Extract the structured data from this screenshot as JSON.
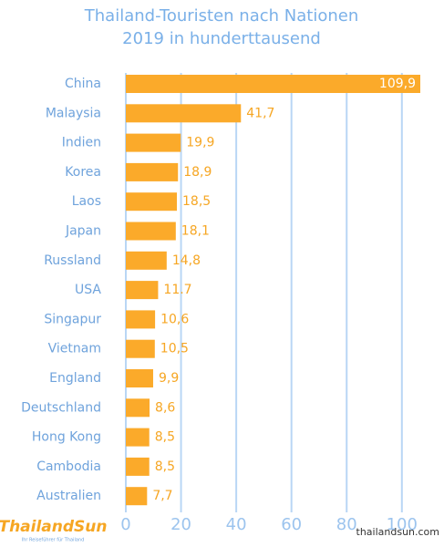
{
  "chart_data": {
    "type": "bar",
    "orientation": "horizontal",
    "title": "Thailand-Touristen nach Nationen",
    "subtitle": "2019 in hunderttausend",
    "categories": [
      "China",
      "Malaysia",
      "Indien",
      "Korea",
      "Laos",
      "Japan",
      "Russland",
      "USA",
      "Singapur",
      "Vietnam",
      "England",
      "Deutschland",
      "Hong Kong",
      "Cambodia",
      "Australien"
    ],
    "values": [
      109.9,
      41.7,
      19.9,
      18.9,
      18.5,
      18.1,
      14.8,
      11.7,
      10.6,
      10.5,
      9.9,
      8.6,
      8.5,
      8.5,
      7.7
    ],
    "value_labels": [
      "109,9",
      "41,7",
      "19,9",
      "18,9",
      "18,5",
      "18,1",
      "14,8",
      "11.7",
      "10,6",
      "10,5",
      "9,9",
      "8,6",
      "8,5",
      "8,5",
      "7,7"
    ],
    "color": "#fbaa2a",
    "grid_color": "#b9d6f5",
    "xlim": [
      0,
      107
    ],
    "xticks": [
      0,
      20,
      40,
      60,
      80,
      100
    ],
    "grid": true,
    "logo": "ThailandSun",
    "logo_tagline": "Ihr Reiseführer für Thailand",
    "watermark": "thailandsun.com"
  }
}
